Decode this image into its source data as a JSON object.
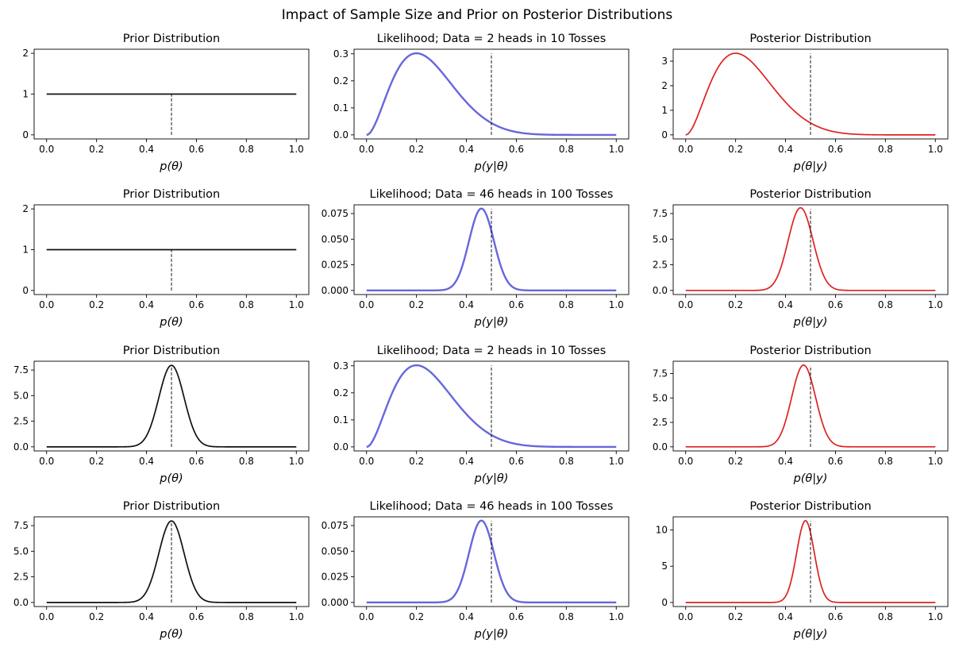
{
  "figure": {
    "title": "Impact of Sample Size and Prior on Posterior Distributions",
    "colors": {
      "prior": "#111111",
      "likelihood": "#6666dd",
      "posterior": "#dd2222",
      "reference_line": "#000000"
    }
  },
  "chart_data": [
    {
      "type": "line",
      "row": 0,
      "col": 0,
      "title": "Prior Distribution",
      "xlabel": "p(θ)",
      "ylabel": "",
      "series": [
        {
          "role": "prior",
          "formula": "beta",
          "a": 1,
          "b": 1
        }
      ],
      "reference_x": 0.5,
      "reference_height": 1.0,
      "xlim": [
        -0.05,
        1.05
      ],
      "ylim": [
        -0.1,
        2.1
      ],
      "xticks": [
        0.0,
        0.2,
        0.4,
        0.6,
        0.8,
        1.0
      ],
      "yticks": [
        0,
        1,
        2
      ],
      "xtick_labels": [
        "0.0",
        "0.2",
        "0.4",
        "0.6",
        "0.8",
        "1.0"
      ],
      "ytick_labels": [
        "0",
        "1",
        "2"
      ]
    },
    {
      "type": "line",
      "row": 0,
      "col": 1,
      "title": "Likelihood; Data = 2 heads in 10 Tosses",
      "xlabel": "p(y|θ)",
      "ylabel": "",
      "series": [
        {
          "role": "likelihood",
          "formula": "binomial",
          "k": 2,
          "n": 10
        }
      ],
      "reference_x": 0.5,
      "reference_height": 0.302,
      "xlim": [
        -0.05,
        1.05
      ],
      "ylim": [
        -0.015,
        0.317
      ],
      "xticks": [
        0.0,
        0.2,
        0.4,
        0.6,
        0.8,
        1.0
      ],
      "yticks": [
        0.0,
        0.1,
        0.2,
        0.3
      ],
      "xtick_labels": [
        "0.0",
        "0.2",
        "0.4",
        "0.6",
        "0.8",
        "1.0"
      ],
      "ytick_labels": [
        "0.0",
        "0.1",
        "0.2",
        "0.3"
      ]
    },
    {
      "type": "line",
      "row": 0,
      "col": 2,
      "title": "Posterior Distribution",
      "xlabel": "p(θ|y)",
      "ylabel": "",
      "series": [
        {
          "role": "posterior",
          "formula": "beta",
          "a": 3,
          "b": 9
        }
      ],
      "reference_x": 0.5,
      "reference_height": 3.32,
      "xlim": [
        -0.05,
        1.05
      ],
      "ylim": [
        -0.166,
        3.486
      ],
      "xticks": [
        0.0,
        0.2,
        0.4,
        0.6,
        0.8,
        1.0
      ],
      "yticks": [
        0,
        1,
        2,
        3
      ],
      "xtick_labels": [
        "0.0",
        "0.2",
        "0.4",
        "0.6",
        "0.8",
        "1.0"
      ],
      "ytick_labels": [
        "0",
        "1",
        "2",
        "3"
      ]
    },
    {
      "type": "line",
      "row": 1,
      "col": 0,
      "title": "Prior Distribution",
      "xlabel": "p(θ)",
      "ylabel": "",
      "series": [
        {
          "role": "prior",
          "formula": "beta",
          "a": 1,
          "b": 1
        }
      ],
      "reference_x": 0.5,
      "reference_height": 1.0,
      "xlim": [
        -0.05,
        1.05
      ],
      "ylim": [
        -0.1,
        2.1
      ],
      "xticks": [
        0.0,
        0.2,
        0.4,
        0.6,
        0.8,
        1.0
      ],
      "yticks": [
        0,
        1,
        2
      ],
      "xtick_labels": [
        "0.0",
        "0.2",
        "0.4",
        "0.6",
        "0.8",
        "1.0"
      ],
      "ytick_labels": [
        "0",
        "1",
        "2"
      ]
    },
    {
      "type": "line",
      "row": 1,
      "col": 1,
      "title": "Likelihood; Data = 46 heads in 100 Tosses",
      "xlabel": "p(y|θ)",
      "ylabel": "",
      "series": [
        {
          "role": "likelihood",
          "formula": "binomial",
          "k": 46,
          "n": 100
        }
      ],
      "reference_x": 0.5,
      "reference_height": 0.0795,
      "xlim": [
        -0.05,
        1.05
      ],
      "ylim": [
        -0.004,
        0.0835
      ],
      "xticks": [
        0.0,
        0.2,
        0.4,
        0.6,
        0.8,
        1.0
      ],
      "yticks": [
        0.0,
        0.025,
        0.05,
        0.075
      ],
      "xtick_labels": [
        "0.0",
        "0.2",
        "0.4",
        "0.6",
        "0.8",
        "1.0"
      ],
      "ytick_labels": [
        "0.000",
        "0.025",
        "0.050",
        "0.075"
      ]
    },
    {
      "type": "line",
      "row": 1,
      "col": 2,
      "title": "Posterior Distribution",
      "xlabel": "p(θ|y)",
      "ylabel": "",
      "series": [
        {
          "role": "posterior",
          "formula": "beta",
          "a": 47,
          "b": 55
        }
      ],
      "reference_x": 0.5,
      "reference_height": 7.95,
      "xlim": [
        -0.05,
        1.05
      ],
      "ylim": [
        -0.4,
        8.35
      ],
      "xticks": [
        0.0,
        0.2,
        0.4,
        0.6,
        0.8,
        1.0
      ],
      "yticks": [
        0.0,
        2.5,
        5.0,
        7.5
      ],
      "xtick_labels": [
        "0.0",
        "0.2",
        "0.4",
        "0.6",
        "0.8",
        "1.0"
      ],
      "ytick_labels": [
        "0.0",
        "2.5",
        "5.0",
        "7.5"
      ]
    },
    {
      "type": "line",
      "row": 2,
      "col": 0,
      "title": "Prior Distribution",
      "xlabel": "p(θ)",
      "ylabel": "",
      "series": [
        {
          "role": "prior",
          "formula": "beta",
          "a": 50,
          "b": 50
        }
      ],
      "reference_x": 0.5,
      "reference_height": 7.96,
      "xlim": [
        -0.05,
        1.05
      ],
      "ylim": [
        -0.4,
        8.36
      ],
      "xticks": [
        0.0,
        0.2,
        0.4,
        0.6,
        0.8,
        1.0
      ],
      "yticks": [
        0.0,
        2.5,
        5.0,
        7.5
      ],
      "xtick_labels": [
        "0.0",
        "0.2",
        "0.4",
        "0.6",
        "0.8",
        "1.0"
      ],
      "ytick_labels": [
        "0.0",
        "2.5",
        "5.0",
        "7.5"
      ]
    },
    {
      "type": "line",
      "row": 2,
      "col": 1,
      "title": "Likelihood; Data = 2 heads in 10 Tosses",
      "xlabel": "p(y|θ)",
      "ylabel": "",
      "series": [
        {
          "role": "likelihood",
          "formula": "binomial",
          "k": 2,
          "n": 10
        }
      ],
      "reference_x": 0.5,
      "reference_height": 0.302,
      "xlim": [
        -0.05,
        1.05
      ],
      "ylim": [
        -0.015,
        0.317
      ],
      "xticks": [
        0.0,
        0.2,
        0.4,
        0.6,
        0.8,
        1.0
      ],
      "yticks": [
        0.0,
        0.1,
        0.2,
        0.3
      ],
      "xtick_labels": [
        "0.0",
        "0.2",
        "0.4",
        "0.6",
        "0.8",
        "1.0"
      ],
      "ytick_labels": [
        "0.0",
        "0.1",
        "0.2",
        "0.3"
      ]
    },
    {
      "type": "line",
      "row": 2,
      "col": 2,
      "title": "Posterior Distribution",
      "xlabel": "p(θ|y)",
      "ylabel": "",
      "series": [
        {
          "role": "posterior",
          "formula": "beta",
          "a": 52,
          "b": 58
        }
      ],
      "reference_x": 0.5,
      "reference_height": 8.3,
      "xlim": [
        -0.05,
        1.05
      ],
      "ylim": [
        -0.42,
        8.76
      ],
      "xticks": [
        0.0,
        0.2,
        0.4,
        0.6,
        0.8,
        1.0
      ],
      "yticks": [
        0.0,
        2.5,
        5.0,
        7.5
      ],
      "xtick_labels": [
        "0.0",
        "0.2",
        "0.4",
        "0.6",
        "0.8",
        "1.0"
      ],
      "ytick_labels": [
        "0.0",
        "2.5",
        "5.0",
        "7.5"
      ]
    },
    {
      "type": "line",
      "row": 3,
      "col": 0,
      "title": "Prior Distribution",
      "xlabel": "p(θ)",
      "ylabel": "",
      "series": [
        {
          "role": "prior",
          "formula": "beta",
          "a": 50,
          "b": 50
        }
      ],
      "reference_x": 0.5,
      "reference_height": 7.96,
      "xlim": [
        -0.05,
        1.05
      ],
      "ylim": [
        -0.4,
        8.36
      ],
      "xticks": [
        0.0,
        0.2,
        0.4,
        0.6,
        0.8,
        1.0
      ],
      "yticks": [
        0.0,
        2.5,
        5.0,
        7.5
      ],
      "xtick_labels": [
        "0.0",
        "0.2",
        "0.4",
        "0.6",
        "0.8",
        "1.0"
      ],
      "ytick_labels": [
        "0.0",
        "2.5",
        "5.0",
        "7.5"
      ]
    },
    {
      "type": "line",
      "row": 3,
      "col": 1,
      "title": "Likelihood; Data = 46 heads in 100 Tosses",
      "xlabel": "p(y|θ)",
      "ylabel": "",
      "series": [
        {
          "role": "likelihood",
          "formula": "binomial",
          "k": 46,
          "n": 100
        }
      ],
      "reference_x": 0.5,
      "reference_height": 0.0795,
      "xlim": [
        -0.05,
        1.05
      ],
      "ylim": [
        -0.004,
        0.0835
      ],
      "xticks": [
        0.0,
        0.2,
        0.4,
        0.6,
        0.8,
        1.0
      ],
      "yticks": [
        0.0,
        0.025,
        0.05,
        0.075
      ],
      "xtick_labels": [
        "0.0",
        "0.2",
        "0.4",
        "0.6",
        "0.8",
        "1.0"
      ],
      "ytick_labels": [
        "0.000",
        "0.025",
        "0.050",
        "0.075"
      ]
    },
    {
      "type": "line",
      "row": 3,
      "col": 2,
      "title": "Posterior Distribution",
      "xlabel": "p(θ|y)",
      "ylabel": "",
      "series": [
        {
          "role": "posterior",
          "formula": "beta",
          "a": 96,
          "b": 104
        }
      ],
      "reference_x": 0.5,
      "reference_height": 11.25,
      "xlim": [
        -0.05,
        1.05
      ],
      "ylim": [
        -0.56,
        11.81
      ],
      "xticks": [
        0.0,
        0.2,
        0.4,
        0.6,
        0.8,
        1.0
      ],
      "yticks": [
        0,
        5,
        10
      ],
      "xtick_labels": [
        "0.0",
        "0.2",
        "0.4",
        "0.6",
        "0.8",
        "1.0"
      ],
      "ytick_labels": [
        "0",
        "5",
        "10"
      ]
    }
  ]
}
